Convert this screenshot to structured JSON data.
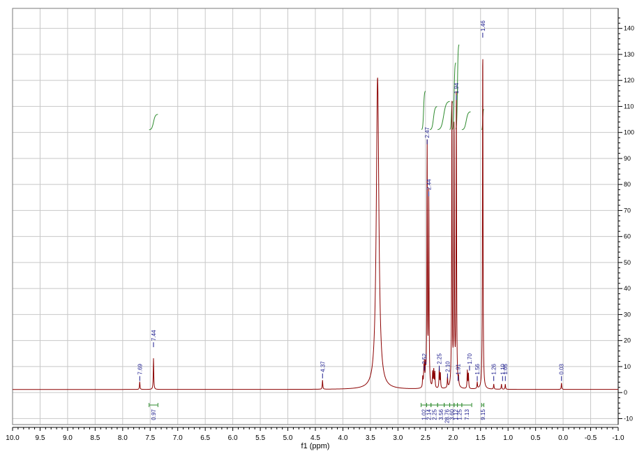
{
  "chart_data": {
    "type": "line",
    "xlabel": "f1 (ppm)",
    "ylabel": "",
    "xlim": [
      10.0,
      -1.0
    ],
    "ylim": [
      -12,
      148
    ],
    "x_ticks": [
      "10.0",
      "9.5",
      "9.0",
      "8.5",
      "8.0",
      "7.5",
      "7.0",
      "6.5",
      "6.0",
      "5.5",
      "5.0",
      "4.5",
      "4.0",
      "3.5",
      "3.0",
      "2.5",
      "2.0",
      "1.5",
      "1.0",
      "0.5",
      "0.0",
      "-0.5",
      "-1.0"
    ],
    "y_ticks": [
      "140",
      "130",
      "120",
      "110",
      "100",
      "90",
      "80",
      "70",
      "60",
      "50",
      "40",
      "30",
      "20",
      "10",
      "0",
      "-10"
    ],
    "grid": true,
    "baseline": 1.2,
    "colors": {
      "spectrum": "#8b0000",
      "integral": "#2e8b2e",
      "peak_label": "#1a1a8c",
      "grid": "#c8c8c8",
      "frame": "#7a7a7a"
    },
    "peaks": [
      {
        "x": 7.69,
        "y": 3
      },
      {
        "x": 7.44,
        "y": 12
      },
      {
        "x": 4.37,
        "y": 3.5
      },
      {
        "x": 3.37,
        "y": 120
      },
      {
        "x": 2.55,
        "y": 4
      },
      {
        "x": 2.53,
        "y": 6
      },
      {
        "x": 2.52,
        "y": 8
      },
      {
        "x": 2.5,
        "y": 7
      },
      {
        "x": 2.47,
        "y": 95
      },
      {
        "x": 2.44,
        "y": 75
      },
      {
        "x": 2.37,
        "y": 6
      },
      {
        "x": 2.35,
        "y": 7
      },
      {
        "x": 2.33,
        "y": 6
      },
      {
        "x": 2.25,
        "y": 8
      },
      {
        "x": 2.23,
        "y": 6
      },
      {
        "x": 2.1,
        "y": 4
      },
      {
        "x": 2.02,
        "y": 110
      },
      {
        "x": 1.98,
        "y": 104
      },
      {
        "x": 1.94,
        "y": 112
      },
      {
        "x": 1.9,
        "y": 3
      },
      {
        "x": 1.74,
        "y": 7
      },
      {
        "x": 1.72,
        "y": 6
      },
      {
        "x": 1.56,
        "y": 2.5
      },
      {
        "x": 1.46,
        "y": 136
      },
      {
        "x": 1.26,
        "y": 2
      },
      {
        "x": 1.12,
        "y": 2
      },
      {
        "x": 1.05,
        "y": 2
      },
      {
        "x": 0.03,
        "y": 2.5
      }
    ],
    "peak_labels": [
      {
        "x": 7.69,
        "text": "7.69",
        "top": 5
      },
      {
        "x": 7.44,
        "text": "7.44",
        "top": 18
      },
      {
        "x": 4.37,
        "text": "4.37",
        "top": 6
      },
      {
        "x": 2.52,
        "text": "2.52",
        "top": 9
      },
      {
        "x": 2.47,
        "text": "2.47",
        "top": 96
      },
      {
        "x": 2.44,
        "text": "2.44",
        "top": 76
      },
      {
        "x": 2.25,
        "text": "2.25",
        "top": 9
      },
      {
        "x": 2.1,
        "text": "2.10",
        "top": 6
      },
      {
        "x": 1.94,
        "text": "1.94",
        "top": 113
      },
      {
        "x": 1.91,
        "text": "1.91",
        "top": 5
      },
      {
        "x": 1.7,
        "text": "1.70",
        "top": 9
      },
      {
        "x": 1.56,
        "text": "1.56",
        "top": 5
      },
      {
        "x": 1.46,
        "text": "1.46",
        "top": 137
      },
      {
        "x": 1.26,
        "text": "1.26",
        "top": 5
      },
      {
        "x": 1.1,
        "text": "1.10",
        "top": 5
      },
      {
        "x": 1.05,
        "text": "1.05",
        "top": 5
      },
      {
        "x": 0.03,
        "text": "0.03",
        "top": 5
      }
    ],
    "integral_curves": [
      {
        "x_from": 7.52,
        "x_to": 7.36,
        "y_from": 101,
        "y_to": 107
      },
      {
        "x_from": 2.57,
        "x_to": 2.5,
        "y_from": 101,
        "y_to": 116
      },
      {
        "x_from": 2.42,
        "x_to": 2.29,
        "y_from": 101,
        "y_to": 110
      },
      {
        "x_from": 2.28,
        "x_to": 2.06,
        "y_from": 101,
        "y_to": 112
      },
      {
        "x_from": 2.06,
        "x_to": 2.0,
        "y_from": 101,
        "y_to": 112
      },
      {
        "x_from": 2.01,
        "x_to": 1.95,
        "y_from": 101,
        "y_to": 127
      },
      {
        "x_from": 1.95,
        "x_to": 1.89,
        "y_from": 101,
        "y_to": 134
      },
      {
        "x_from": 1.84,
        "x_to": 1.68,
        "y_from": 101,
        "y_to": 108
      },
      {
        "x_from": 1.48,
        "x_to": 1.44,
        "y_from": 101,
        "y_to": 109
      }
    ],
    "integrals": [
      {
        "from": 7.52,
        "to": 7.36,
        "label": "0.97"
      },
      {
        "from": 2.58,
        "to": 2.48,
        "label": "1.02"
      },
      {
        "from": 2.48,
        "to": 2.4,
        "label": "2.14"
      },
      {
        "from": 2.4,
        "to": 2.28,
        "label": "2.25"
      },
      {
        "from": 2.28,
        "to": 2.16,
        "label": "3.56"
      },
      {
        "from": 2.16,
        "to": 2.06,
        "label": "28.76"
      },
      {
        "from": 2.06,
        "to": 1.98,
        "label": "3.60"
      },
      {
        "from": 1.98,
        "to": 1.92,
        "label": "1.12"
      },
      {
        "from": 1.92,
        "to": 1.84,
        "label": "1.25"
      },
      {
        "from": 1.84,
        "to": 1.66,
        "label": "7.13"
      },
      {
        "from": 1.48,
        "to": 1.44,
        "label": "9.15"
      }
    ]
  }
}
